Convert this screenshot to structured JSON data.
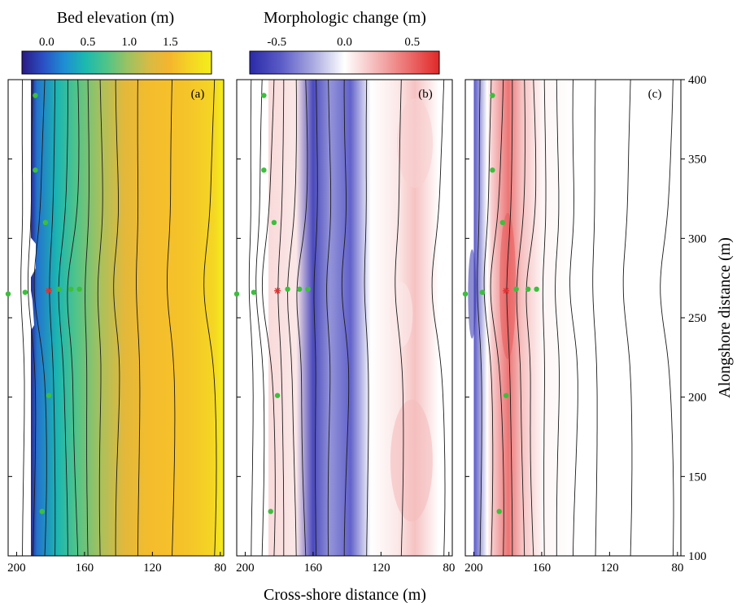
{
  "chart_data": {
    "type": "heatmap",
    "x_label": "Cross-shore distance (m)",
    "y_label": "Alongshore distance (m)",
    "x_ticks": [
      200,
      160,
      120,
      80
    ],
    "y_ticks": [
      100,
      150,
      200,
      250,
      300,
      350,
      400
    ],
    "xlim": [
      205,
      78
    ],
    "ylim": [
      100,
      400
    ],
    "panels": [
      {
        "label": "(a)",
        "colorbar": {
          "title": "Bed elevation (m)",
          "ticks": [
            "0.0",
            "0.5",
            "1.0",
            "1.5"
          ],
          "tick_values": [
            0.0,
            0.5,
            1.0,
            1.5
          ],
          "range": [
            -0.3,
            2.0
          ],
          "colors": [
            "#2a1a84",
            "#2b4fc4",
            "#1e8ed4",
            "#1bb9b0",
            "#4ec48a",
            "#9bc263",
            "#d6bb45",
            "#f5b52e",
            "#f5d524",
            "#f2ee1a"
          ]
        },
        "field": "bed elevation",
        "bands": [
          {
            "x": 198,
            "value": -0.25
          },
          {
            "x": 188,
            "value": 0.1
          },
          {
            "x": 176,
            "value": 0.45
          },
          {
            "x": 164,
            "value": 0.75
          },
          {
            "x": 150,
            "value": 1.05
          },
          {
            "x": 136,
            "value": 1.35
          },
          {
            "x": 120,
            "value": 1.55
          },
          {
            "x": 100,
            "value": 1.6
          },
          {
            "x": 84,
            "value": 1.75
          },
          {
            "x": 78,
            "value": 2.0
          }
        ]
      },
      {
        "label": "(b)",
        "colorbar": {
          "title": "Morphologic change (m)",
          "ticks": [
            "-0.5",
            "0.0",
            "0.5"
          ],
          "tick_values": [
            -0.5,
            0.0,
            0.5
          ],
          "range": [
            -0.7,
            0.7
          ],
          "colors": [
            "#2a2aa8",
            "#5c5cc8",
            "#a9a9e0",
            "#ffffff",
            "#f4b8b8",
            "#ec7070",
            "#e02828"
          ]
        },
        "field": "morphologic change",
        "bands": [
          {
            "x": 186,
            "value": 0.12
          },
          {
            "x": 170,
            "value": 0.08
          },
          {
            "x": 160,
            "value": -0.55
          },
          {
            "x": 150,
            "value": -0.3
          },
          {
            "x": 138,
            "value": -0.45
          },
          {
            "x": 126,
            "value": 0.0
          },
          {
            "x": 110,
            "value": 0.08
          },
          {
            "x": 100,
            "value": 0.2
          },
          {
            "x": 86,
            "value": 0.0
          }
        ]
      },
      {
        "label": "(c)",
        "field": "morphologic change",
        "bands": [
          {
            "x": 200,
            "value": -0.45
          },
          {
            "x": 190,
            "value": 0.15
          },
          {
            "x": 180,
            "value": 0.45
          },
          {
            "x": 172,
            "value": 0.2
          },
          {
            "x": 160,
            "value": 0.03
          },
          {
            "x": 140,
            "value": 0.0
          },
          {
            "x": 90,
            "value": 0.0
          }
        ]
      }
    ],
    "sensors_green": [
      {
        "x": 205,
        "y": 265
      },
      {
        "x": 195,
        "y": 266
      },
      {
        "x": 175,
        "y": 268
      },
      {
        "x": 168,
        "y": 268
      },
      {
        "x": 163,
        "y": 268
      },
      {
        "x": 189,
        "y": 390
      },
      {
        "x": 189,
        "y": 343
      },
      {
        "x": 183,
        "y": 310
      },
      {
        "x": 181,
        "y": 201
      },
      {
        "x": 185,
        "y": 128
      }
    ],
    "sensor_red": {
      "x": 181,
      "y": 267
    }
  }
}
